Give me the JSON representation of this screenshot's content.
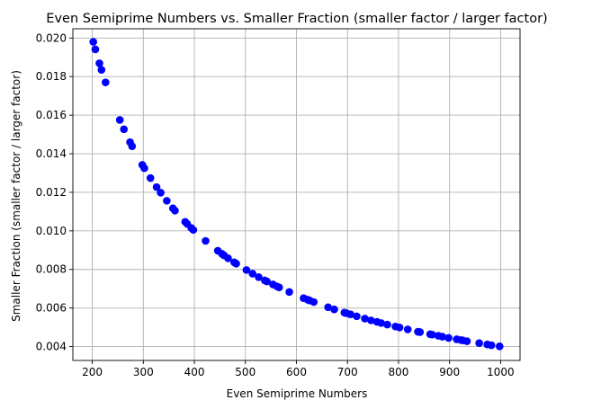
{
  "chart_data": {
    "type": "scatter",
    "title": "Even Semiprime Numbers vs. Smaller Fraction (smaller factor / larger factor)",
    "xlabel": "Even Semiprime Numbers",
    "ylabel": "Smaller Fraction (smaller factor / larger factor)",
    "xlim": [
      162,
      1038
    ],
    "ylim": [
      0.00328,
      0.02048
    ],
    "xticks": [
      200,
      300,
      400,
      500,
      600,
      700,
      800,
      900,
      1000
    ],
    "yticks": [
      0.004,
      0.006,
      0.008,
      0.01,
      0.012,
      0.014,
      0.016,
      0.018,
      0.02
    ],
    "ytick_labels": [
      "0.004",
      "0.006",
      "0.008",
      "0.010",
      "0.012",
      "0.014",
      "0.016",
      "0.018",
      "0.020"
    ],
    "grid": true,
    "marker_color": "#0000ff",
    "series": [
      {
        "x": [
          202,
          206,
          214,
          218,
          226,
          254,
          262,
          274,
          278,
          298,
          302,
          314,
          326,
          334,
          346,
          358,
          362,
          382,
          386,
          394,
          398,
          422,
          446,
          454,
          458,
          466,
          478,
          482,
          502,
          514,
          526,
          538,
          542,
          554,
          562,
          566,
          586,
          614,
          622,
          626,
          634,
          662,
          674,
          694,
          698,
          706,
          718,
          734,
          746,
          758,
          766,
          778,
          794,
          802,
          818,
          838,
          842,
          862,
          866,
          878,
          886,
          898,
          914,
          922,
          926,
          934,
          958,
          974,
          982,
          998
        ],
        "y": [
          0.0198,
          0.01941,
          0.01869,
          0.01835,
          0.0177,
          0.01575,
          0.01527,
          0.0146,
          0.01439,
          0.01342,
          0.01325,
          0.01274,
          0.01227,
          0.01198,
          0.01156,
          0.01117,
          0.01105,
          0.01047,
          0.01036,
          0.01015,
          0.01005,
          0.00948,
          0.00897,
          0.00881,
          0.00873,
          0.00858,
          0.00837,
          0.0083,
          0.00797,
          0.00778,
          0.0076,
          0.00743,
          0.00738,
          0.00722,
          0.00712,
          0.00707,
          0.00683,
          0.00651,
          0.00643,
          0.00639,
          0.00631,
          0.00604,
          0.00593,
          0.00576,
          0.00573,
          0.00567,
          0.00557,
          0.00545,
          0.00536,
          0.00528,
          0.00522,
          0.00514,
          0.00504,
          0.00499,
          0.00489,
          0.00477,
          0.00475,
          0.00464,
          0.00462,
          0.00456,
          0.00451,
          0.00445,
          0.00438,
          0.00434,
          0.00432,
          0.00428,
          0.00418,
          0.00411,
          0.00407,
          0.00401
        ]
      }
    ]
  }
}
